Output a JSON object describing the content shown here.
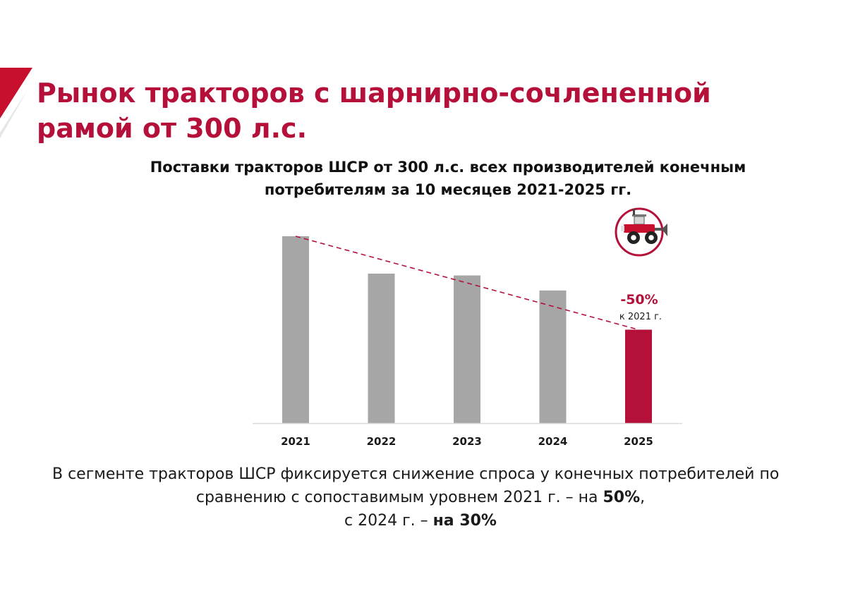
{
  "title": {
    "line1": "Рынок тракторов с шарнирно-сочлененной",
    "line2": "рамой от 300 л.с."
  },
  "chart_data": {
    "type": "bar",
    "title": "Поставки тракторов ШСР от 300 л.с. всех производителей конечным потребителям за 10 месяцев 2021-2025 гг.",
    "title_lines": [
      "Поставки тракторов ШСР от 300 л.с. всех производителей конечным",
      "потребителям за 10 месяцев 2021-2025 гг."
    ],
    "categories": [
      "2021",
      "2022",
      "2023",
      "2024",
      "2025"
    ],
    "values": [
      100,
      80,
      79,
      71,
      50
    ],
    "ylim": [
      0,
      100
    ],
    "xlabel": "",
    "ylabel": "",
    "grid": false,
    "trendline": "dashed, from 2021 bar top to 2025 bar top",
    "highlight_index": 4,
    "annotation": {
      "value": "-50%",
      "note": "к 2021 г."
    },
    "colors": {
      "bar": "#a6a6a6",
      "highlight": "#b5103a",
      "trend": "#b5103a"
    }
  },
  "icon": {
    "name": "tractor-icon",
    "color": "#b5103a"
  },
  "summary": {
    "line1": "В сегменте тракторов ШСР фиксируется снижение спроса у конечных потребителей по",
    "line2_pre": "сравнению с сопоставимым уровнем 2021 г. – на ",
    "line2_bold": "50%",
    "line2_post": ",",
    "line3_pre": "с 2024 г. – ",
    "line3_bold": "на 30%"
  },
  "colors": {
    "accent": "#b5103a",
    "accent_light": "#e7c3cd",
    "text": "#1a1a1a"
  }
}
